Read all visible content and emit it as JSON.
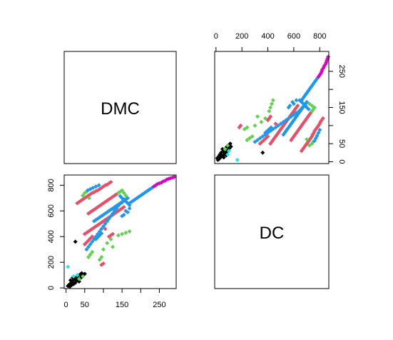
{
  "chart_data": {
    "type": "scatter",
    "layout": "pairs-matrix",
    "variables": [
      "DMC",
      "DC"
    ],
    "colors": {
      "black": "#000000",
      "red": "#DF536B",
      "green": "#61D04F",
      "blue": "#2297E6",
      "cyan": "#28E2E5",
      "magenta": "#CD0BBC"
    },
    "panels": {
      "top_left": {
        "type": "label",
        "text": "DMC"
      },
      "bottom_right": {
        "type": "label",
        "text": "DC"
      },
      "top_right": {
        "type": "scatter",
        "x_variable": "DC",
        "y_variable": "DMC",
        "xlim": [
          -10,
          870
        ],
        "ylim": [
          -5,
          305
        ],
        "x_ticks": [
          "0",
          "200",
          "400",
          "600",
          "800"
        ],
        "x_tick_values": [
          0,
          200,
          400,
          600,
          800
        ],
        "y_ticks": [
          "0",
          "50",
          "150",
          "250"
        ],
        "y_tick_values": [
          0,
          50,
          150,
          250
        ],
        "y_minor_tick_values": [
          100,
          200
        ],
        "x_axis_side": "top",
        "y_axis_side": "right"
      },
      "bottom_left": {
        "type": "scatter",
        "x_variable": "DMC",
        "y_variable": "DC",
        "xlim": [
          -5,
          295
        ],
        "ylim": [
          -5,
          880
        ],
        "x_ticks": [
          "0",
          "50",
          "150",
          "250"
        ],
        "x_tick_values": [
          0,
          50,
          150,
          250
        ],
        "x_minor_tick_values": [
          100,
          200
        ],
        "y_ticks": [
          "0",
          "200",
          "400",
          "600",
          "800"
        ],
        "y_tick_values": [
          0,
          200,
          400,
          600,
          800
        ],
        "x_axis_side": "bottom",
        "y_axis_side": "left"
      }
    },
    "points": [
      {
        "dmc": 5,
        "dc": 15,
        "c": "black"
      },
      {
        "dmc": 8,
        "dc": 25,
        "c": "black"
      },
      {
        "dmc": 12,
        "dc": 35,
        "c": "black"
      },
      {
        "dmc": 15,
        "dc": 45,
        "c": "black"
      },
      {
        "dmc": 18,
        "dc": 55,
        "c": "black"
      },
      {
        "dmc": 20,
        "dc": 30,
        "c": "black"
      },
      {
        "dmc": 22,
        "dc": 70,
        "c": "black"
      },
      {
        "dmc": 25,
        "dc": 40,
        "c": "black"
      },
      {
        "dmc": 28,
        "dc": 85,
        "c": "black"
      },
      {
        "dmc": 30,
        "dc": 60,
        "c": "black"
      },
      {
        "dmc": 32,
        "dc": 95,
        "c": "black"
      },
      {
        "dmc": 35,
        "dc": 50,
        "c": "black"
      },
      {
        "dmc": 38,
        "dc": 105,
        "c": "black"
      },
      {
        "dmc": 40,
        "dc": 80,
        "c": "black"
      },
      {
        "dmc": 42,
        "dc": 115,
        "c": "black"
      },
      {
        "dmc": 45,
        "dc": 100,
        "c": "black"
      },
      {
        "dmc": 50,
        "dc": 110,
        "c": "black"
      },
      {
        "dmc": 10,
        "dc": 10,
        "c": "black"
      },
      {
        "dmc": 14,
        "dc": 20,
        "c": "black"
      },
      {
        "dmc": 26,
        "dc": 65,
        "c": "black"
      },
      {
        "dmc": 33,
        "dc": 75,
        "c": "black"
      },
      {
        "dmc": 25,
        "dc": 360,
        "c": "black"
      },
      {
        "dmc": 12,
        "dc": 60,
        "c": "black"
      },
      {
        "dmc": 18,
        "dc": 80,
        "c": "black"
      },
      {
        "dmc": 5,
        "dc": 165,
        "c": "cyan"
      },
      {
        "dmc": 20,
        "dc": 90,
        "c": "cyan"
      },
      {
        "dmc": 30,
        "dc": 100,
        "c": "cyan"
      },
      {
        "dmc": 35,
        "dc": 70,
        "c": "green"
      },
      {
        "dmc": 45,
        "dc": 90,
        "c": "green"
      },
      {
        "dmc": 30,
        "dc": 660,
        "c": "red"
      },
      {
        "dmc": 35,
        "dc": 670,
        "c": "red"
      },
      {
        "dmc": 40,
        "dc": 680,
        "c": "red"
      },
      {
        "dmc": 45,
        "dc": 690,
        "c": "red"
      },
      {
        "dmc": 50,
        "dc": 700,
        "c": "red"
      },
      {
        "dmc": 55,
        "dc": 710,
        "c": "red"
      },
      {
        "dmc": 60,
        "dc": 720,
        "c": "red"
      },
      {
        "dmc": 65,
        "dc": 730,
        "c": "red"
      },
      {
        "dmc": 70,
        "dc": 740,
        "c": "red"
      },
      {
        "dmc": 75,
        "dc": 745,
        "c": "red"
      },
      {
        "dmc": 80,
        "dc": 755,
        "c": "red"
      },
      {
        "dmc": 85,
        "dc": 760,
        "c": "red"
      },
      {
        "dmc": 90,
        "dc": 770,
        "c": "red"
      },
      {
        "dmc": 95,
        "dc": 780,
        "c": "red"
      },
      {
        "dmc": 100,
        "dc": 790,
        "c": "red"
      },
      {
        "dmc": 105,
        "dc": 800,
        "c": "red"
      },
      {
        "dmc": 110,
        "dc": 805,
        "c": "red"
      },
      {
        "dmc": 115,
        "dc": 815,
        "c": "red"
      },
      {
        "dmc": 120,
        "dc": 825,
        "c": "red"
      },
      {
        "dmc": 50,
        "dc": 740,
        "c": "green"
      },
      {
        "dmc": 55,
        "dc": 750,
        "c": "green"
      },
      {
        "dmc": 62,
        "dc": 700,
        "c": "green"
      },
      {
        "dmc": 45,
        "dc": 720,
        "c": "green"
      },
      {
        "dmc": 58,
        "dc": 760,
        "c": "blue"
      },
      {
        "dmc": 65,
        "dc": 770,
        "c": "blue"
      },
      {
        "dmc": 72,
        "dc": 780,
        "c": "blue"
      },
      {
        "dmc": 80,
        "dc": 790,
        "c": "blue"
      },
      {
        "dmc": 88,
        "dc": 800,
        "c": "blue"
      },
      {
        "dmc": 60,
        "dc": 580,
        "c": "red"
      },
      {
        "dmc": 65,
        "dc": 590,
        "c": "red"
      },
      {
        "dmc": 70,
        "dc": 600,
        "c": "red"
      },
      {
        "dmc": 75,
        "dc": 610,
        "c": "red"
      },
      {
        "dmc": 80,
        "dc": 620,
        "c": "red"
      },
      {
        "dmc": 85,
        "dc": 630,
        "c": "red"
      },
      {
        "dmc": 90,
        "dc": 640,
        "c": "red"
      },
      {
        "dmc": 95,
        "dc": 650,
        "c": "red"
      },
      {
        "dmc": 100,
        "dc": 660,
        "c": "red"
      },
      {
        "dmc": 105,
        "dc": 670,
        "c": "red"
      },
      {
        "dmc": 110,
        "dc": 680,
        "c": "red"
      },
      {
        "dmc": 115,
        "dc": 690,
        "c": "red"
      },
      {
        "dmc": 120,
        "dc": 700,
        "c": "red"
      },
      {
        "dmc": 125,
        "dc": 710,
        "c": "red"
      },
      {
        "dmc": 130,
        "dc": 720,
        "c": "red"
      },
      {
        "dmc": 135,
        "dc": 730,
        "c": "red"
      },
      {
        "dmc": 140,
        "dc": 740,
        "c": "green"
      },
      {
        "dmc": 145,
        "dc": 750,
        "c": "green"
      },
      {
        "dmc": 150,
        "dc": 760,
        "c": "green"
      },
      {
        "dmc": 155,
        "dc": 740,
        "c": "green"
      },
      {
        "dmc": 160,
        "dc": 720,
        "c": "green"
      },
      {
        "dmc": 165,
        "dc": 700,
        "c": "green"
      },
      {
        "dmc": 155,
        "dc": 690,
        "c": "blue"
      },
      {
        "dmc": 160,
        "dc": 675,
        "c": "blue"
      },
      {
        "dmc": 165,
        "dc": 660,
        "c": "blue"
      },
      {
        "dmc": 170,
        "dc": 645,
        "c": "blue"
      },
      {
        "dmc": 150,
        "dc": 700,
        "c": "blue"
      },
      {
        "dmc": 145,
        "dc": 715,
        "c": "blue"
      },
      {
        "dmc": 75,
        "dc": 520,
        "c": "blue"
      },
      {
        "dmc": 80,
        "dc": 530,
        "c": "blue"
      },
      {
        "dmc": 85,
        "dc": 540,
        "c": "blue"
      },
      {
        "dmc": 90,
        "dc": 550,
        "c": "blue"
      },
      {
        "dmc": 95,
        "dc": 560,
        "c": "blue"
      },
      {
        "dmc": 100,
        "dc": 570,
        "c": "blue"
      },
      {
        "dmc": 105,
        "dc": 580,
        "c": "blue"
      },
      {
        "dmc": 110,
        "dc": 590,
        "c": "blue"
      },
      {
        "dmc": 115,
        "dc": 600,
        "c": "blue"
      },
      {
        "dmc": 120,
        "dc": 610,
        "c": "blue"
      },
      {
        "dmc": 125,
        "dc": 620,
        "c": "blue"
      },
      {
        "dmc": 130,
        "dc": 630,
        "c": "blue"
      },
      {
        "dmc": 135,
        "dc": 640,
        "c": "blue"
      },
      {
        "dmc": 140,
        "dc": 650,
        "c": "blue"
      },
      {
        "dmc": 145,
        "dc": 660,
        "c": "blue"
      },
      {
        "dmc": 150,
        "dc": 670,
        "c": "blue"
      },
      {
        "dmc": 90,
        "dc": 500,
        "c": "red"
      },
      {
        "dmc": 95,
        "dc": 510,
        "c": "red"
      },
      {
        "dmc": 100,
        "dc": 520,
        "c": "red"
      },
      {
        "dmc": 105,
        "dc": 530,
        "c": "red"
      },
      {
        "dmc": 110,
        "dc": 540,
        "c": "red"
      },
      {
        "dmc": 115,
        "dc": 550,
        "c": "red"
      },
      {
        "dmc": 120,
        "dc": 560,
        "c": "red"
      },
      {
        "dmc": 125,
        "dc": 570,
        "c": "red"
      },
      {
        "dmc": 130,
        "dc": 580,
        "c": "red"
      },
      {
        "dmc": 135,
        "dc": 590,
        "c": "red"
      },
      {
        "dmc": 140,
        "dc": 600,
        "c": "red"
      },
      {
        "dmc": 145,
        "dc": 610,
        "c": "red"
      },
      {
        "dmc": 150,
        "dc": 620,
        "c": "red"
      },
      {
        "dmc": 155,
        "dc": 630,
        "c": "red"
      },
      {
        "dmc": 160,
        "dc": 600,
        "c": "blue"
      },
      {
        "dmc": 165,
        "dc": 590,
        "c": "blue"
      },
      {
        "dmc": 170,
        "dc": 620,
        "c": "blue"
      },
      {
        "dmc": 155,
        "dc": 570,
        "c": "blue"
      },
      {
        "dmc": 150,
        "dc": 560,
        "c": "blue"
      },
      {
        "dmc": 50,
        "dc": 420,
        "c": "red"
      },
      {
        "dmc": 55,
        "dc": 430,
        "c": "red"
      },
      {
        "dmc": 60,
        "dc": 440,
        "c": "red"
      },
      {
        "dmc": 65,
        "dc": 450,
        "c": "red"
      },
      {
        "dmc": 70,
        "dc": 460,
        "c": "red"
      },
      {
        "dmc": 75,
        "dc": 470,
        "c": "red"
      },
      {
        "dmc": 80,
        "dc": 480,
        "c": "red"
      },
      {
        "dmc": 85,
        "dc": 490,
        "c": "red"
      },
      {
        "dmc": 55,
        "dc": 300,
        "c": "blue"
      },
      {
        "dmc": 60,
        "dc": 320,
        "c": "blue"
      },
      {
        "dmc": 65,
        "dc": 340,
        "c": "blue"
      },
      {
        "dmc": 70,
        "dc": 360,
        "c": "blue"
      },
      {
        "dmc": 75,
        "dc": 380,
        "c": "blue"
      },
      {
        "dmc": 80,
        "dc": 400,
        "c": "blue"
      },
      {
        "dmc": 85,
        "dc": 420,
        "c": "blue"
      },
      {
        "dmc": 90,
        "dc": 440,
        "c": "blue"
      },
      {
        "dmc": 95,
        "dc": 460,
        "c": "blue"
      },
      {
        "dmc": 100,
        "dc": 480,
        "c": "blue"
      },
      {
        "dmc": 105,
        "dc": 500,
        "c": "blue"
      },
      {
        "dmc": 110,
        "dc": 520,
        "c": "blue"
      },
      {
        "dmc": 115,
        "dc": 540,
        "c": "blue"
      },
      {
        "dmc": 120,
        "dc": 560,
        "c": "blue"
      },
      {
        "dmc": 125,
        "dc": 580,
        "c": "blue"
      },
      {
        "dmc": 130,
        "dc": 600,
        "c": "blue"
      },
      {
        "dmc": 135,
        "dc": 620,
        "c": "blue"
      },
      {
        "dmc": 140,
        "dc": 640,
        "c": "blue"
      },
      {
        "dmc": 145,
        "dc": 655,
        "c": "blue"
      },
      {
        "dmc": 150,
        "dc": 665,
        "c": "blue"
      },
      {
        "dmc": 155,
        "dc": 680,
        "c": "blue"
      },
      {
        "dmc": 160,
        "dc": 690,
        "c": "blue"
      },
      {
        "dmc": 165,
        "dc": 700,
        "c": "blue"
      },
      {
        "dmc": 50,
        "dc": 340,
        "c": "red"
      },
      {
        "dmc": 55,
        "dc": 355,
        "c": "red"
      },
      {
        "dmc": 60,
        "dc": 370,
        "c": "red"
      },
      {
        "dmc": 65,
        "dc": 385,
        "c": "red"
      },
      {
        "dmc": 70,
        "dc": 400,
        "c": "red"
      },
      {
        "dmc": 80,
        "dc": 380,
        "c": "blue"
      },
      {
        "dmc": 85,
        "dc": 395,
        "c": "blue"
      },
      {
        "dmc": 90,
        "dc": 410,
        "c": "blue"
      },
      {
        "dmc": 95,
        "dc": 425,
        "c": "blue"
      },
      {
        "dmc": 60,
        "dc": 240,
        "c": "green"
      },
      {
        "dmc": 65,
        "dc": 260,
        "c": "green"
      },
      {
        "dmc": 70,
        "dc": 280,
        "c": "green"
      },
      {
        "dmc": 90,
        "dc": 220,
        "c": "green"
      },
      {
        "dmc": 95,
        "dc": 240,
        "c": "green"
      },
      {
        "dmc": 100,
        "dc": 300,
        "c": "green"
      },
      {
        "dmc": 110,
        "dc": 350,
        "c": "green"
      },
      {
        "dmc": 120,
        "dc": 380,
        "c": "green"
      },
      {
        "dmc": 125,
        "dc": 320,
        "c": "green"
      },
      {
        "dmc": 140,
        "dc": 410,
        "c": "green"
      },
      {
        "dmc": 150,
        "dc": 420,
        "c": "green"
      },
      {
        "dmc": 160,
        "dc": 430,
        "c": "green"
      },
      {
        "dmc": 170,
        "dc": 440,
        "c": "green"
      },
      {
        "dmc": 115,
        "dc": 400,
        "c": "red"
      },
      {
        "dmc": 120,
        "dc": 410,
        "c": "red"
      },
      {
        "dmc": 125,
        "dc": 420,
        "c": "red"
      },
      {
        "dmc": 105,
        "dc": 460,
        "c": "red"
      },
      {
        "dmc": 95,
        "dc": 180,
        "c": "red"
      },
      {
        "dmc": 100,
        "dc": 190,
        "c": "red"
      },
      {
        "dmc": 170,
        "dc": 660,
        "c": "blue"
      },
      {
        "dmc": 175,
        "dc": 670,
        "c": "blue"
      },
      {
        "dmc": 180,
        "dc": 680,
        "c": "blue"
      },
      {
        "dmc": 185,
        "dc": 690,
        "c": "blue"
      },
      {
        "dmc": 190,
        "dc": 700,
        "c": "blue"
      },
      {
        "dmc": 195,
        "dc": 710,
        "c": "blue"
      },
      {
        "dmc": 200,
        "dc": 720,
        "c": "blue"
      },
      {
        "dmc": 205,
        "dc": 730,
        "c": "blue"
      },
      {
        "dmc": 210,
        "dc": 740,
        "c": "blue"
      },
      {
        "dmc": 215,
        "dc": 750,
        "c": "blue"
      },
      {
        "dmc": 220,
        "dc": 760,
        "c": "blue"
      },
      {
        "dmc": 225,
        "dc": 770,
        "c": "blue"
      },
      {
        "dmc": 230,
        "dc": 780,
        "c": "blue"
      },
      {
        "dmc": 235,
        "dc": 790,
        "c": "magenta"
      },
      {
        "dmc": 240,
        "dc": 800,
        "c": "magenta"
      },
      {
        "dmc": 245,
        "dc": 810,
        "c": "magenta"
      },
      {
        "dmc": 250,
        "dc": 815,
        "c": "magenta"
      },
      {
        "dmc": 255,
        "dc": 820,
        "c": "magenta"
      },
      {
        "dmc": 260,
        "dc": 830,
        "c": "magenta"
      },
      {
        "dmc": 265,
        "dc": 835,
        "c": "magenta"
      },
      {
        "dmc": 270,
        "dc": 845,
        "c": "magenta"
      },
      {
        "dmc": 275,
        "dc": 850,
        "c": "magenta"
      },
      {
        "dmc": 280,
        "dc": 855,
        "c": "magenta"
      },
      {
        "dmc": 285,
        "dc": 860,
        "c": "magenta"
      },
      {
        "dmc": 290,
        "dc": 865,
        "c": "magenta"
      }
    ]
  }
}
